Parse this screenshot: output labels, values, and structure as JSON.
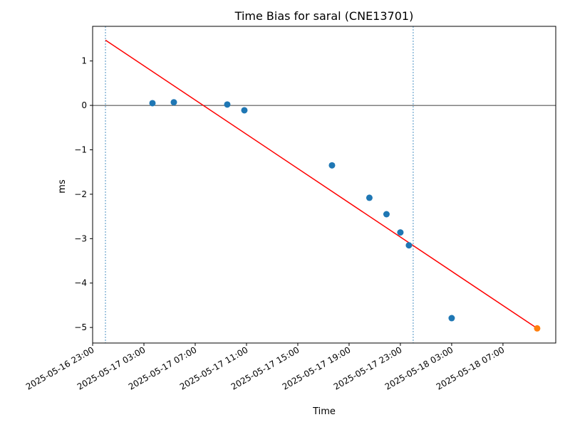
{
  "chart_data": {
    "type": "scatter",
    "title": "Time Bias for saral (CNE13701)",
    "xlabel": "Time",
    "ylabel": "ms",
    "x_ticks": [
      "2025-05-16 23:00",
      "2025-05-17 03:00",
      "2025-05-17 07:00",
      "2025-05-17 11:00",
      "2025-05-17 15:00",
      "2025-05-17 19:00",
      "2025-05-17 23:00",
      "2025-05-18 03:00",
      "2025-05-18 07:00"
    ],
    "y_ticks": [
      1,
      0,
      -1,
      -2,
      -3,
      -4,
      -5
    ],
    "xlim": [
      "2025-05-16 23:00",
      "2025-05-18 11:07"
    ],
    "ylim": [
      -5.35,
      1.78
    ],
    "grid": false,
    "series": [
      {
        "color": "#1f77b4",
        "points": [
          {
            "x": "2025-05-17 03:40",
            "y": 0.05
          },
          {
            "x": "2025-05-17 05:20",
            "y": 0.07
          },
          {
            "x": "2025-05-17 09:30",
            "y": 0.02
          },
          {
            "x": "2025-05-17 10:50",
            "y": -0.11
          },
          {
            "x": "2025-05-17 17:40",
            "y": -1.35
          },
          {
            "x": "2025-05-17 20:35",
            "y": -2.08
          },
          {
            "x": "2025-05-17 21:55",
            "y": -2.45
          },
          {
            "x": "2025-05-17 23:00",
            "y": -2.86
          },
          {
            "x": "2025-05-17 23:40",
            "y": -3.15
          },
          {
            "x": "2025-05-18 03:00",
            "y": -4.79
          }
        ]
      },
      {
        "color": "#ff7f0e",
        "points": [
          {
            "x": "2025-05-18 09:40",
            "y": -5.02
          }
        ]
      }
    ],
    "fit_line": {
      "color": "#ff0000",
      "start": {
        "x": "2025-05-17 00:00",
        "y": 1.47
      },
      "end": {
        "x": "2025-05-18 09:40",
        "y": -5.02
      }
    },
    "zero_line": {
      "y": 0,
      "color": "#000000"
    },
    "vertical_markers": {
      "color": "#1f77b4",
      "x": [
        "2025-05-17 00:00",
        "2025-05-18 00:00"
      ]
    }
  }
}
